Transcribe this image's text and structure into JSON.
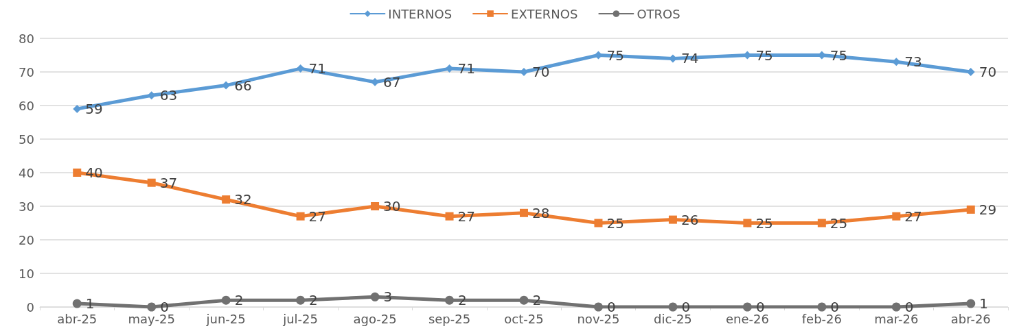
{
  "chart_data": {
    "type": "line",
    "categories": [
      "abr-25",
      "may-25",
      "jun-25",
      "jul-25",
      "ago-25",
      "sep-25",
      "oct-25",
      "nov-25",
      "dic-25",
      "ene-26",
      "feb-26",
      "mar-26",
      "abr-26"
    ],
    "series": [
      {
        "name": "INTERNOS",
        "color": "#5b9bd5",
        "marker": "diamond",
        "values": [
          59,
          63,
          66,
          71,
          67,
          71,
          70,
          75,
          74,
          75,
          75,
          73,
          70
        ]
      },
      {
        "name": "EXTERNOS",
        "color": "#ed7d31",
        "marker": "square",
        "values": [
          40,
          37,
          32,
          27,
          30,
          27,
          28,
          25,
          26,
          25,
          25,
          27,
          29
        ]
      },
      {
        "name": "OTROS",
        "color": "#717171",
        "marker": "circle",
        "values": [
          1,
          0,
          2,
          2,
          3,
          2,
          2,
          0,
          0,
          0,
          0,
          0,
          1
        ]
      }
    ],
    "ylim": [
      0,
      80
    ],
    "yticks": [
      0,
      10,
      20,
      30,
      40,
      50,
      60,
      70,
      80
    ],
    "grid": "y",
    "legend": "top",
    "data_labels": true,
    "line_style": "solid"
  }
}
